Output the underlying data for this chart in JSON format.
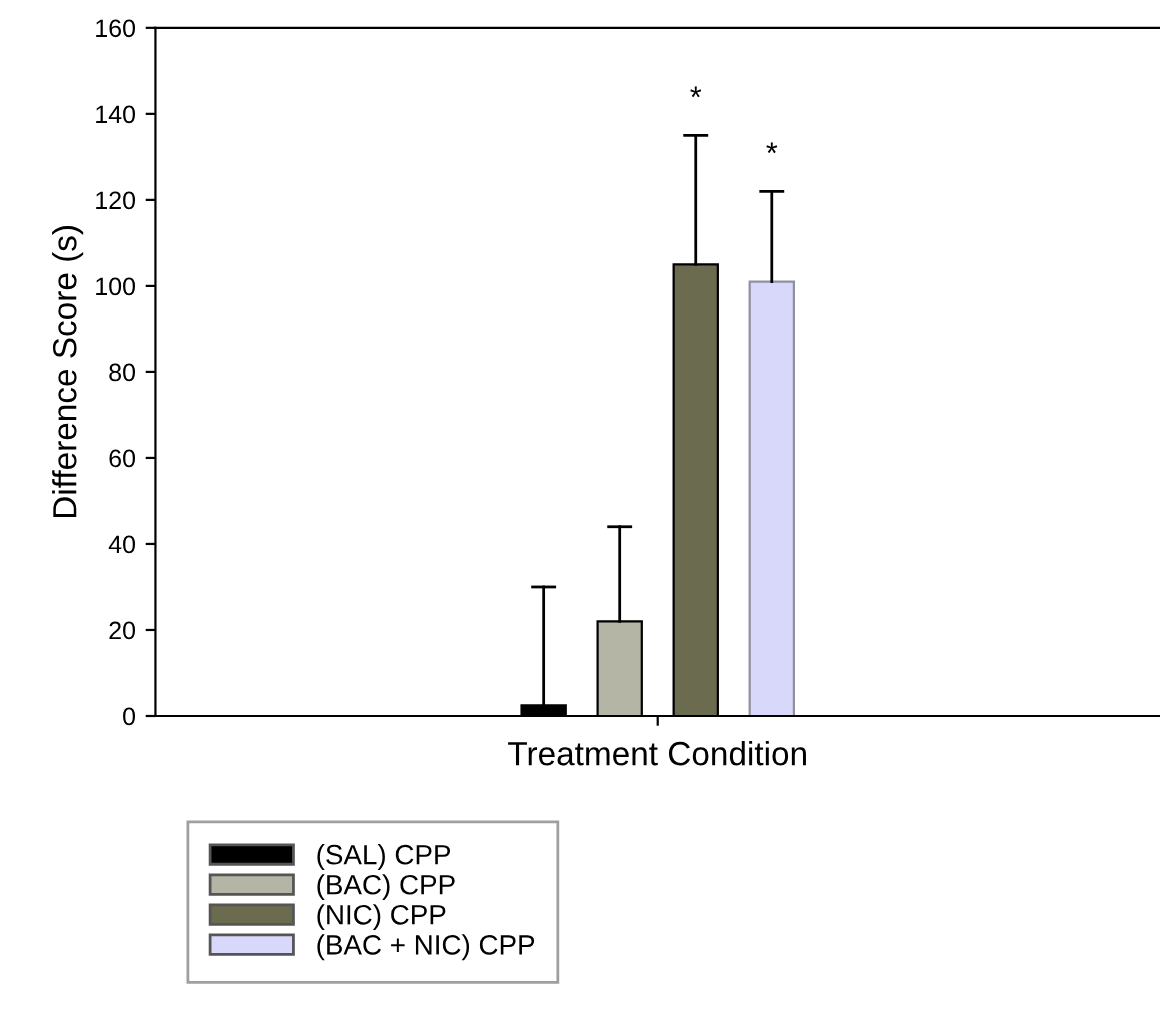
{
  "chart_data": {
    "type": "bar",
    "xlabel": "Treatment Condition",
    "ylabel": "Difference Score (s)",
    "categories": [
      null
    ],
    "series": [
      {
        "name": "(SAL) CPP",
        "color": "#000000",
        "values": [
          2.5
        ],
        "errors": [
          [
            2.5,
            30
          ]
        ]
      },
      {
        "name": "(BAC) CPP",
        "color": "#b5b5a5",
        "values": [
          22
        ],
        "errors": [
          [
            22,
            44
          ]
        ]
      },
      {
        "name": "(NIC) CPP",
        "color": "#6b6b50",
        "values": [
          105
        ],
        "errors": [
          [
            105,
            135
          ]
        ]
      },
      {
        "name": "(BAC + NIC) CPP",
        "color": "#d8d8fa",
        "values": [
          101
        ],
        "errors": [
          [
            101,
            122
          ]
        ]
      }
    ],
    "annotations": [
      "*",
      "*"
    ],
    "ylim": [
      0,
      160
    ],
    "yticks": [
      0,
      20,
      40,
      60,
      80,
      100,
      120,
      140,
      160
    ],
    "grid": false,
    "legend": "bottom left"
  }
}
